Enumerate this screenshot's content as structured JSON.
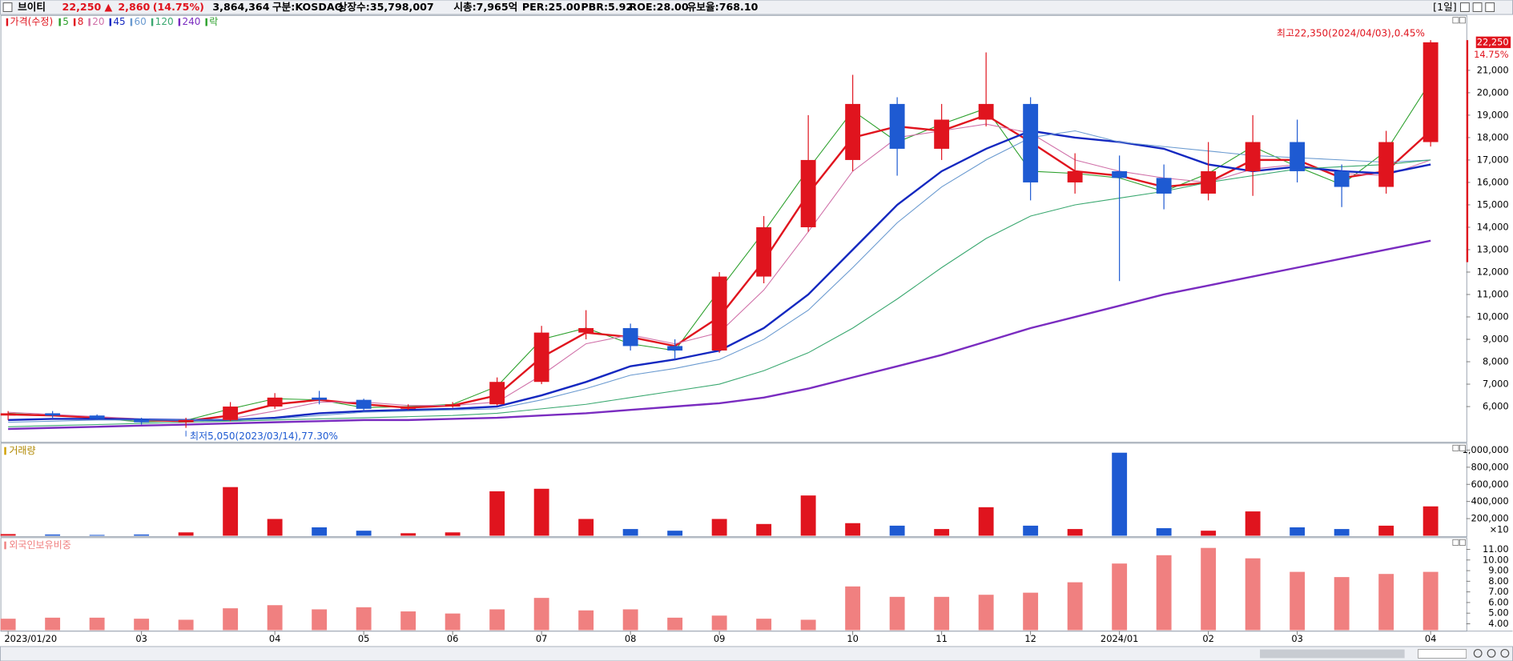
{
  "header": {
    "name": "브이티",
    "price": "22,250",
    "arrow": "▲",
    "change": "2,860",
    "change_rate": "(14.75%)",
    "volume": "3,864,364",
    "market": "구분:KOSDAQ",
    "shares": "상장수:35,798,007",
    "cap": "시총:7,965억",
    "per": "PER:25.00",
    "pbr": "PBR:5.92",
    "roe": "ROE:28.00",
    "reserve": "유보율:768.10",
    "period": "[1일]"
  },
  "chart_data": [
    {
      "type": "candlestick",
      "name": "가격(수정)",
      "legend_extra": "락",
      "up_color": "#e0141e",
      "down_color": "#1e5ad2",
      "categories": [
        "2023/01/20",
        null,
        null,
        "03",
        null,
        null,
        "04",
        null,
        "05",
        null,
        "06",
        null,
        "07",
        null,
        "08",
        null,
        "09",
        null,
        null,
        "10",
        null,
        "11",
        null,
        "12",
        null,
        "2024/01",
        null,
        "02",
        null,
        "03",
        null,
        null,
        "04"
      ],
      "open": [
        5600,
        5700,
        5600,
        5450,
        5300,
        5400,
        6000,
        6400,
        6300,
        5900,
        6000,
        6100,
        7100,
        9300,
        9500,
        8700,
        8500,
        11800,
        14000,
        17000,
        19500,
        17500,
        18800,
        19500,
        16000,
        16500,
        16200,
        15500,
        16500,
        17800,
        16500,
        15800,
        17800
      ],
      "high": [
        5800,
        5800,
        5650,
        5500,
        5500,
        6200,
        6600,
        6700,
        6350,
        6100,
        6200,
        7300,
        9600,
        10300,
        9700,
        9000,
        12000,
        14500,
        19000,
        20800,
        19800,
        19500,
        21800,
        19800,
        17300,
        17200,
        16800,
        17800,
        19000,
        18800,
        16800,
        18300,
        22350
      ],
      "low": [
        5400,
        5500,
        5400,
        5200,
        5050,
        5350,
        5900,
        6100,
        5800,
        5850,
        5950,
        6050,
        7000,
        9000,
        8500,
        8100,
        8400,
        11500,
        13800,
        16500,
        16300,
        17000,
        18500,
        15200,
        15500,
        11600,
        14800,
        15200,
        15400,
        16000,
        14900,
        15500,
        17600
      ],
      "close": [
        5700,
        5600,
        5450,
        5300,
        5400,
        6000,
        6400,
        6300,
        5900,
        6000,
        6100,
        7100,
        9300,
        9500,
        8700,
        8500,
        11800,
        14000,
        17000,
        19500,
        17500,
        18800,
        19500,
        16000,
        16500,
        16200,
        15500,
        16500,
        17800,
        16500,
        15800,
        17800,
        22250
      ],
      "series": [
        {
          "name": "5",
          "color": "#2ca02c",
          "values": [
            5700,
            5600,
            5480,
            5320,
            5380,
            5900,
            6350,
            6300,
            5950,
            6000,
            6100,
            6900,
            9000,
            9500,
            8800,
            8500,
            11200,
            13800,
            16600,
            19200,
            17800,
            18600,
            19300,
            16500,
            16400,
            16200,
            15600,
            16400,
            17600,
            16700,
            15900,
            17400,
            20500
          ]
        },
        {
          "name": "8",
          "color": "#e0141e",
          "values": [
            5650,
            5600,
            5500,
            5400,
            5350,
            5600,
            6100,
            6300,
            6100,
            5950,
            6050,
            6500,
            8200,
            9300,
            9100,
            8700,
            10000,
            12500,
            15500,
            18000,
            18500,
            18300,
            19000,
            17800,
            16500,
            16300,
            15800,
            16000,
            17000,
            17000,
            16200,
            16500,
            18300
          ]
        },
        {
          "name": "20",
          "color": "#d070a8",
          "values": [
            5750,
            5650,
            5550,
            5450,
            5350,
            5450,
            5800,
            6200,
            6200,
            6050,
            6050,
            6200,
            7400,
            8800,
            9200,
            8800,
            9300,
            11200,
            13800,
            16500,
            18000,
            18300,
            18600,
            18200,
            17000,
            16500,
            16200,
            16000,
            16600,
            16800,
            16400,
            16300,
            17000
          ]
        },
        {
          "name": "45",
          "color": "#1428c0",
          "values": [
            5400,
            5450,
            5450,
            5420,
            5400,
            5400,
            5500,
            5700,
            5800,
            5850,
            5900,
            6000,
            6500,
            7100,
            7800,
            8100,
            8500,
            9500,
            11000,
            13000,
            15000,
            16500,
            17500,
            18300,
            18000,
            17800,
            17500,
            16800,
            16500,
            16700,
            16500,
            16400,
            16800
          ]
        },
        {
          "name": "60",
          "color": "#6a9ad0",
          "values": [
            5300,
            5350,
            5400,
            5400,
            5400,
            5400,
            5450,
            5600,
            5750,
            5800,
            5850,
            5900,
            6300,
            6800,
            7400,
            7700,
            8100,
            9000,
            10300,
            12200,
            14200,
            15800,
            17000,
            18000,
            18300,
            17800,
            17600,
            17400,
            17200,
            17100,
            17000,
            16900,
            17000
          ]
        },
        {
          "name": "120",
          "color": "#3aa870",
          "values": [
            5100,
            5150,
            5200,
            5250,
            5300,
            5350,
            5400,
            5450,
            5500,
            5550,
            5600,
            5700,
            5900,
            6100,
            6400,
            6700,
            7000,
            7600,
            8400,
            9500,
            10800,
            12200,
            13500,
            14500,
            15000,
            15300,
            15600,
            16000,
            16300,
            16600,
            16700,
            16800,
            17000
          ]
        },
        {
          "name": "240",
          "color": "#7a2cc0",
          "values": [
            5000,
            5050,
            5100,
            5150,
            5200,
            5250,
            5300,
            5350,
            5400,
            5400,
            5450,
            5500,
            5600,
            5700,
            5850,
            6000,
            6150,
            6400,
            6800,
            7300,
            7800,
            8300,
            8900,
            9500,
            10000,
            10500,
            11000,
            11400,
            11800,
            12200,
            12600,
            13000,
            13400
          ]
        }
      ],
      "high_label": "최고22,350(2024/04/03),0.45%",
      "low_label": "최저5,050(2023/03/14),77.30%",
      "last_change_label": "14.75%",
      "ylim": [
        4450,
        23450
      ],
      "yticks": [
        {
          "value": 6000,
          "label": "6,000"
        },
        {
          "value": 7000,
          "label": "7,000"
        },
        {
          "value": 8000,
          "label": "8,000"
        },
        {
          "value": 9000,
          "label": "9,000"
        },
        {
          "value": 10000,
          "label": "10,000"
        },
        {
          "value": 11000,
          "label": "11,000"
        },
        {
          "value": 12000,
          "label": "12,000"
        },
        {
          "value": 13000,
          "label": "13,000"
        },
        {
          "value": 14000,
          "label": "14,000"
        },
        {
          "value": 15000,
          "label": "15,000"
        },
        {
          "value": 16000,
          "label": "16,000"
        },
        {
          "value": 17000,
          "label": "17,000"
        },
        {
          "value": 18000,
          "label": "18,000"
        },
        {
          "value": 19000,
          "label": "19,000"
        },
        {
          "value": 20000,
          "label": "20,000"
        },
        {
          "value": 21000,
          "label": "21,000"
        }
      ]
    },
    {
      "type": "bar",
      "title": "거래량",
      "unit_label": "×10",
      "values": [
        20000,
        15000,
        10000,
        15000,
        40000,
        580000,
        200000,
        100000,
        60000,
        30000,
        40000,
        530000,
        560000,
        200000,
        80000,
        60000,
        200000,
        140000,
        480000,
        150000,
        120000,
        80000,
        340000,
        120000,
        80000,
        990000,
        90000,
        60000,
        290000,
        100000,
        80000,
        120000,
        350000
      ],
      "ylim": [
        0,
        1080000
      ],
      "yticks": [
        {
          "value": 200000,
          "label": "200,000"
        },
        {
          "value": 400000,
          "label": "400,000"
        },
        {
          "value": 600000,
          "label": "600,000"
        },
        {
          "value": 800000,
          "label": "800,000"
        },
        {
          "value": 1000000,
          "label": "1,000,000"
        }
      ]
    },
    {
      "type": "bar",
      "title": "외국인보유비중",
      "color": "#f08080",
      "values": [
        4.5,
        4.6,
        4.6,
        4.5,
        4.4,
        5.5,
        5.8,
        5.4,
        5.6,
        5.2,
        5.0,
        5.4,
        6.5,
        5.3,
        5.4,
        4.6,
        4.8,
        4.5,
        4.4,
        7.6,
        6.6,
        6.6,
        6.8,
        7.0,
        8.0,
        9.8,
        10.6,
        11.3,
        10.3,
        9.0,
        8.5,
        8.8,
        9.0
      ],
      "ylim": [
        3.4,
        12.1
      ],
      "yticks": [
        {
          "value": 4,
          "label": "4.00"
        },
        {
          "value": 5,
          "label": "5.00"
        },
        {
          "value": 6,
          "label": "6.00"
        },
        {
          "value": 7,
          "label": "7.00"
        },
        {
          "value": 8,
          "label": "8.00"
        },
        {
          "value": 9,
          "label": "9.00"
        },
        {
          "value": 10,
          "label": "10.00"
        },
        {
          "value": 11,
          "label": "11.00"
        }
      ]
    }
  ]
}
